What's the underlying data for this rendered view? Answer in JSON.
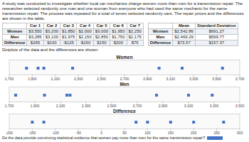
{
  "chart_data": [
    {
      "type": "text",
      "annotations": [
        "A study was conducted to investigate whether local car mechanics charge women more than men for a transmission repair. The researcher selected randomly one man and one woman from everyone who had used the same mechanic for the same transmission repair. The process was repeated for a total of seven selected randomly cars. The repair prices and the differences are shown in the table.",
        "Dotplots of the data and the differences are shown.",
        "Do the data provide convincing statistical evidence that women pay more than men for the same transmission repair?"
      ],
      "color": "#4472c4"
    },
    {
      "type": "table",
      "categories": [
        "Car 1",
        "Car 2",
        "Car 3",
        "Car 4",
        "Car 5",
        "Car 6",
        "Car 7"
      ],
      "series": [
        {
          "name": "Women",
          "values": [
            3550,
            3200,
            1850,
            2000,
            3000,
            1950,
            2250
          ],
          "value_labels": [
            "$3,550",
            "$3,200",
            "$1,850",
            "$2,000",
            "$3,000",
            "$1,950",
            "$2,250"
          ]
        },
        {
          "name": "Men",
          "values": [
            3285,
            3100,
            1975,
            2150,
            2850,
            1750,
            2175
          ],
          "value_labels": [
            "$3,285",
            "$3,100",
            "$1,975",
            "$2,150",
            "$2,850",
            "$1,750",
            "$2,175"
          ]
        },
        {
          "name": "Difference",
          "values": [
            265,
            100,
            -125,
            -150,
            150,
            200,
            75
          ],
          "value_labels": [
            "$265",
            "$100",
            "-$125",
            "-$150",
            "$150",
            "$200",
            "$75"
          ]
        }
      ],
      "data_labels": true
    },
    {
      "type": "table",
      "categories": [
        "Mean",
        "Standard Deviation"
      ],
      "series": [
        {
          "name": "Women",
          "values": [
            2542.86,
            691.27
          ],
          "value_labels": [
            "$2,542.86",
            "$691.27"
          ]
        },
        {
          "name": "Men",
          "values": [
            2469.29,
            599.77
          ],
          "value_labels": [
            "$2,469.29",
            "$599.77"
          ]
        },
        {
          "name": "Difference",
          "values": [
            73.57,
            157.37
          ],
          "value_labels": [
            "$73.57",
            "$157.37"
          ]
        }
      ],
      "data_labels": true
    },
    {
      "type": "dotplot",
      "title": "Women",
      "values": [
        3550,
        3200,
        1850,
        2000,
        3000,
        1950,
        2250
      ],
      "xlim": [
        1700,
        3700
      ],
      "xticks": [
        {
          "value": 1700,
          "label": "1,700"
        },
        {
          "value": 1900,
          "label": "1,900"
        },
        {
          "value": 2100,
          "label": "2,100"
        },
        {
          "value": 2300,
          "label": "2,300"
        },
        {
          "value": 2500,
          "label": "2,500"
        },
        {
          "value": 2700,
          "label": "2,700"
        },
        {
          "value": 2900,
          "label": "2,900"
        },
        {
          "value": 3100,
          "label": "3,100"
        },
        {
          "value": 3300,
          "label": "3,300"
        },
        {
          "value": 3500,
          "label": "3,500"
        },
        {
          "value": 3700,
          "label": "3,700"
        }
      ],
      "color": "#4472c4",
      "marker": "square"
    },
    {
      "type": "dotplot",
      "title": "Men",
      "values": [
        3285,
        3100,
        1975,
        2150,
        2850,
        1750,
        2175
      ],
      "xlim": [
        1700,
        3500
      ],
      "xticks": [
        {
          "value": 1700,
          "label": "1,700"
        },
        {
          "value": 1900,
          "label": "1,900"
        },
        {
          "value": 2100,
          "label": "2,100"
        },
        {
          "value": 2300,
          "label": "2,300"
        },
        {
          "value": 2500,
          "label": "2,500"
        },
        {
          "value": 2700,
          "label": "2,700"
        },
        {
          "value": 2900,
          "label": "2,900"
        },
        {
          "value": 3100,
          "label": "3,100"
        },
        {
          "value": 3300,
          "label": "3,300"
        },
        {
          "value": 3500,
          "label": "3,500"
        }
      ],
      "color": "#4472c4",
      "marker": "square"
    },
    {
      "type": "dotplot",
      "title": "Difference",
      "values": [
        265,
        100,
        -125,
        -150,
        150,
        200,
        75
      ],
      "xlim": [
        -200,
        300
      ],
      "xticks": [
        -200,
        -150,
        -100,
        -50,
        0,
        50,
        100,
        150,
        200,
        250,
        300
      ],
      "color": "#4472c4",
      "marker": "square"
    }
  ]
}
